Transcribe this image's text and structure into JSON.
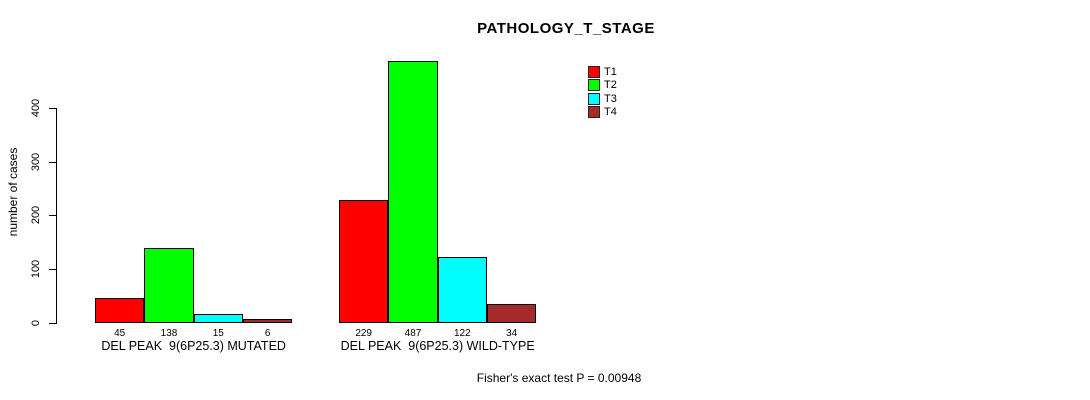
{
  "title": "PATHOLOGY_T_STAGE",
  "y_axis": {
    "label": "number of cases",
    "ticks": [
      0,
      100,
      200,
      300,
      400
    ]
  },
  "footer": "Fisher's exact test P = 0.00948",
  "legend": {
    "position": "top-right",
    "items": [
      {
        "label": "T1",
        "color": "#FF0000"
      },
      {
        "label": "T2",
        "color": "#00FF00"
      },
      {
        "label": "T3",
        "color": "#00FFFF"
      },
      {
        "label": "T4",
        "color": "#A52A2A"
      }
    ]
  },
  "chart_data": {
    "type": "bar",
    "grouped": true,
    "title": "PATHOLOGY_T_STAGE",
    "xlabel": "",
    "ylabel": "number of cases",
    "ylim": [
      0,
      400
    ],
    "yticks": [
      0,
      100,
      200,
      300,
      400
    ],
    "grid": false,
    "legend_position": "top-right",
    "categories": [
      "DEL PEAK  9(6P25.3) MUTATED",
      "DEL PEAK  9(6P25.3) WILD-TYPE"
    ],
    "series": [
      {
        "name": "T1",
        "color": "#FF0000",
        "values": [
          45,
          229
        ]
      },
      {
        "name": "T2",
        "color": "#00FF00",
        "values": [
          138,
          487
        ]
      },
      {
        "name": "T3",
        "color": "#00FFFF",
        "values": [
          15,
          122
        ]
      },
      {
        "name": "T4",
        "color": "#A52A2A",
        "values": [
          6,
          34
        ]
      }
    ],
    "bar_value_labels": [
      [
        45,
        138,
        15,
        6
      ],
      [
        229,
        487,
        122,
        34
      ]
    ],
    "annotation": "Fisher's exact test P = 0.00948"
  }
}
